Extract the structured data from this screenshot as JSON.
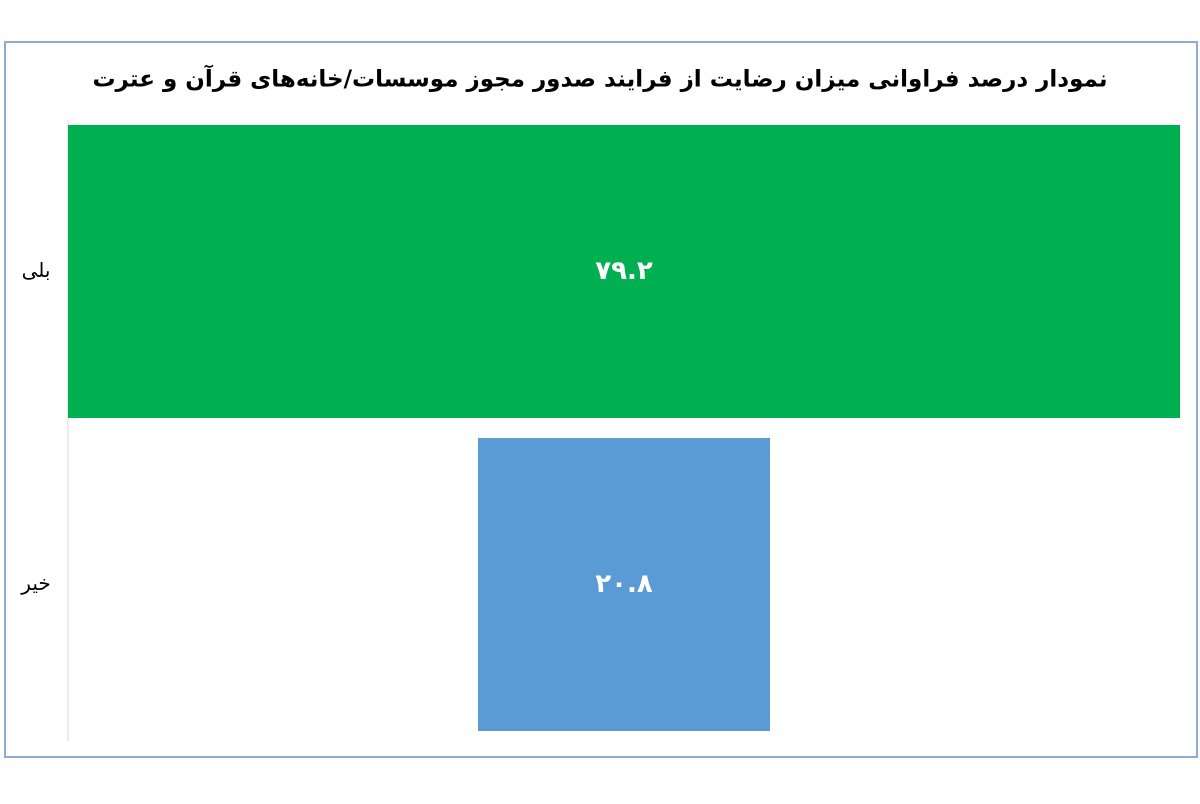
{
  "chart_data": {
    "type": "funnel",
    "title": "نمودار درصد فراوانی میزان رضایت از فرایند صدور مجوز موسسات/خانه‌های قرآن و عترت",
    "categories": [
      "بلی",
      "خیر"
    ],
    "values": [
      79.2,
      20.8
    ],
    "value_labels": [
      "۷۹.۲",
      "۲۰.۸"
    ],
    "colors": [
      "#00b050",
      "#5b9bd5"
    ]
  }
}
